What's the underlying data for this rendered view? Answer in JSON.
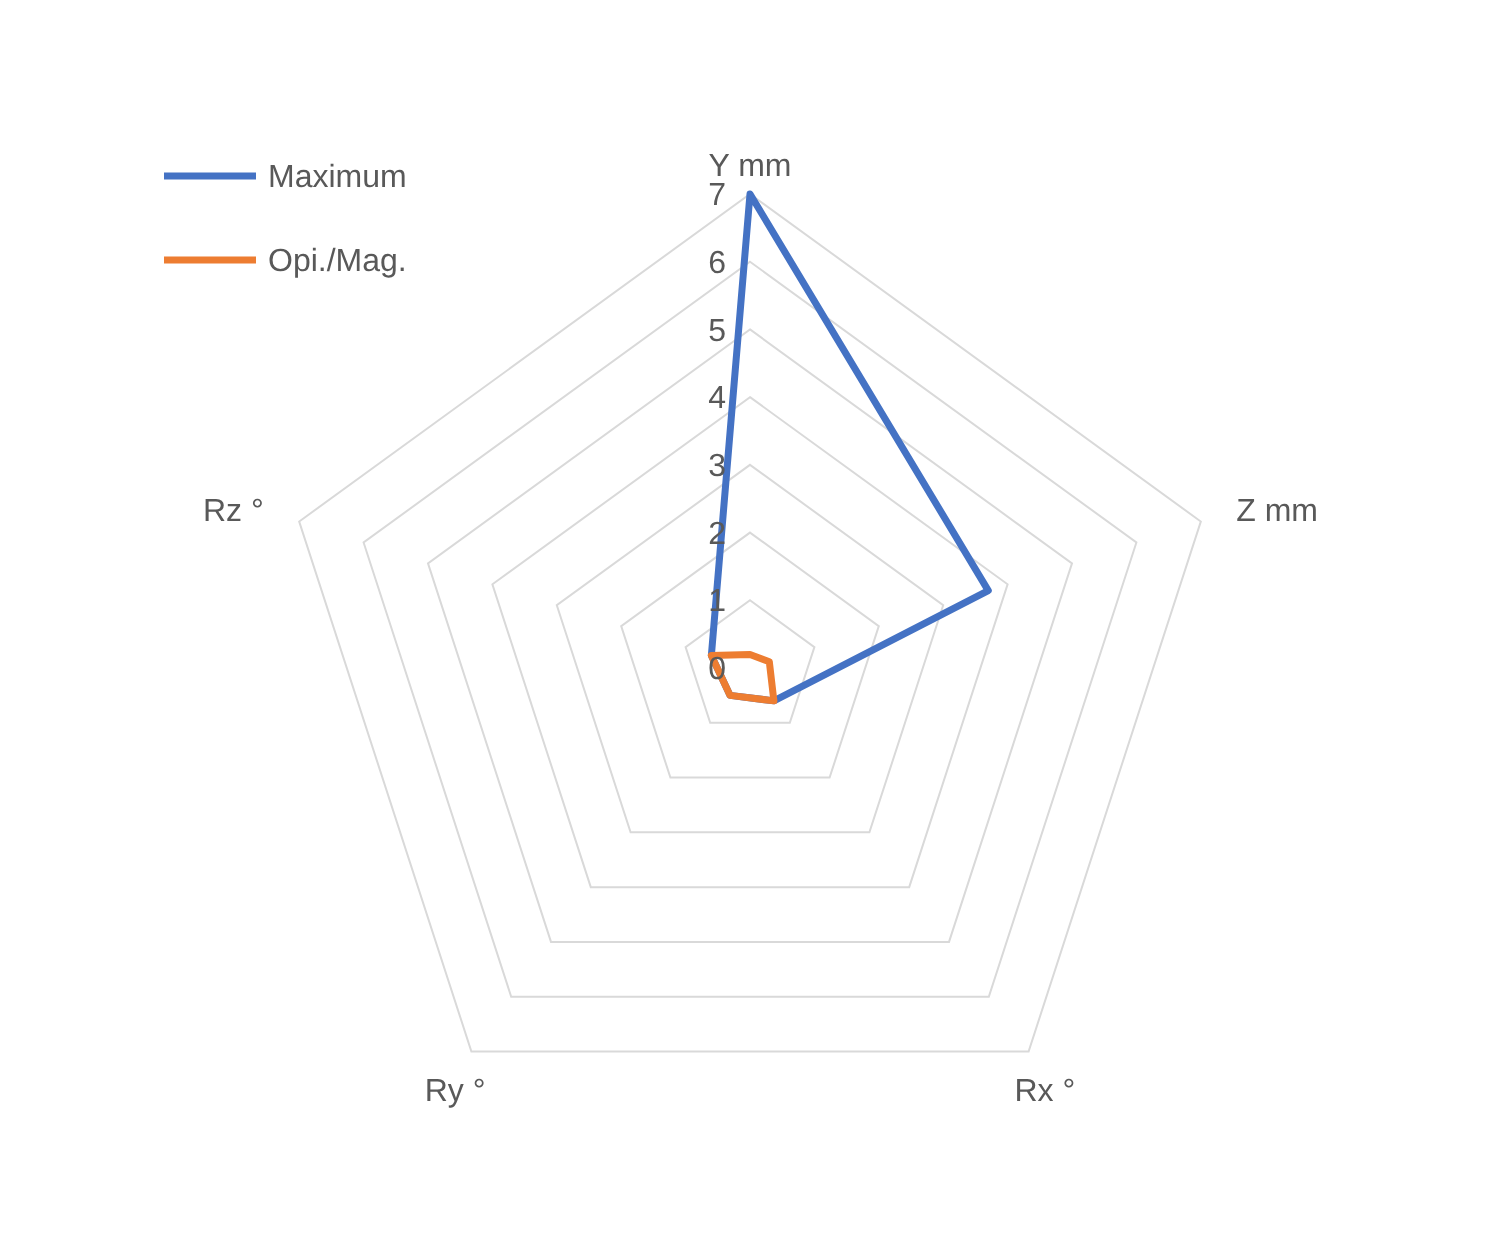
{
  "chart_data": {
    "type": "radar",
    "categories": [
      "Y mm",
      "Z mm",
      "Rx °",
      "Ry °",
      "Rz °"
    ],
    "series": [
      {
        "name": "Maximum",
        "color": "#4472c4",
        "values": [
          7,
          3.7,
          0.6,
          0.5,
          0.6
        ]
      },
      {
        "name": "Opi./Mag.",
        "color": "#ed7d31",
        "values": [
          0.2,
          0.3,
          0.6,
          0.5,
          0.6
        ]
      }
    ],
    "ylim": [
      0,
      7
    ],
    "yticks": [
      0,
      1,
      2,
      3,
      4,
      5,
      6,
      7
    ],
    "grid": true,
    "legend": "top left",
    "marker": "none"
  }
}
